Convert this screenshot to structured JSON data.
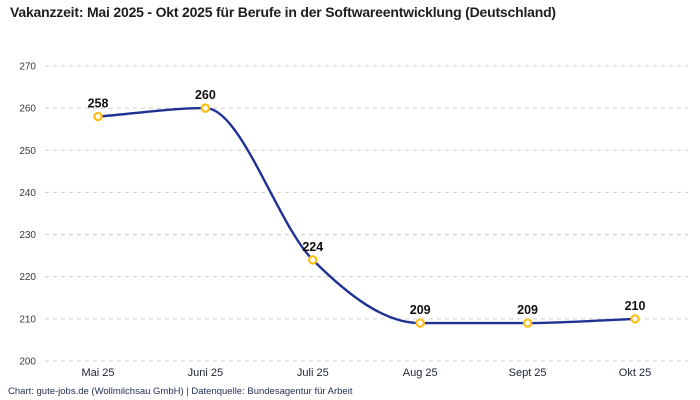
{
  "title": "Vakanzzeit: Mai 2025 - Okt 2025 für Berufe in der Softwareentwicklung (Deutschland)",
  "footer": "Chart: gute-jobs.de (Wollmilchsau GmbH) | Datenquelle: Bundesagentur für Arbeit",
  "colors": {
    "line": "#1f3293",
    "marker_ring": "#fcc01e",
    "marker_fill": "#ffffff",
    "grid": "#cccccc",
    "y_tick_text": "#3a3a3a",
    "x_tick_text": "#1d2433",
    "value_label_text": "#101010",
    "title_text": "#1e1e1e",
    "footer_text": "#1f2d50"
  },
  "chart_data": {
    "type": "line",
    "categories": [
      "Mai 25",
      "Juni 25",
      "Juli 25",
      "Aug 25",
      "Sept 25",
      "Okt 25"
    ],
    "values": [
      258,
      260,
      224,
      209,
      209,
      210
    ],
    "title": "Vakanzzeit: Mai 2025 - Okt 2025 für Berufe in der Softwareentwicklung (Deutschland)",
    "xlabel": "",
    "ylabel": "",
    "ylim": [
      200,
      270
    ],
    "yticks": [
      200,
      210,
      220,
      230,
      240,
      250,
      260,
      270
    ],
    "grid": "horizontal-dashed",
    "legend": "none",
    "curve": "monotone-smooth",
    "data_labels": [
      258,
      260,
      224,
      209,
      209,
      210
    ],
    "source": "Chart: gute-jobs.de (Wollmilchsau GmbH) | Datenquelle: Bundesagentur für Arbeit"
  }
}
